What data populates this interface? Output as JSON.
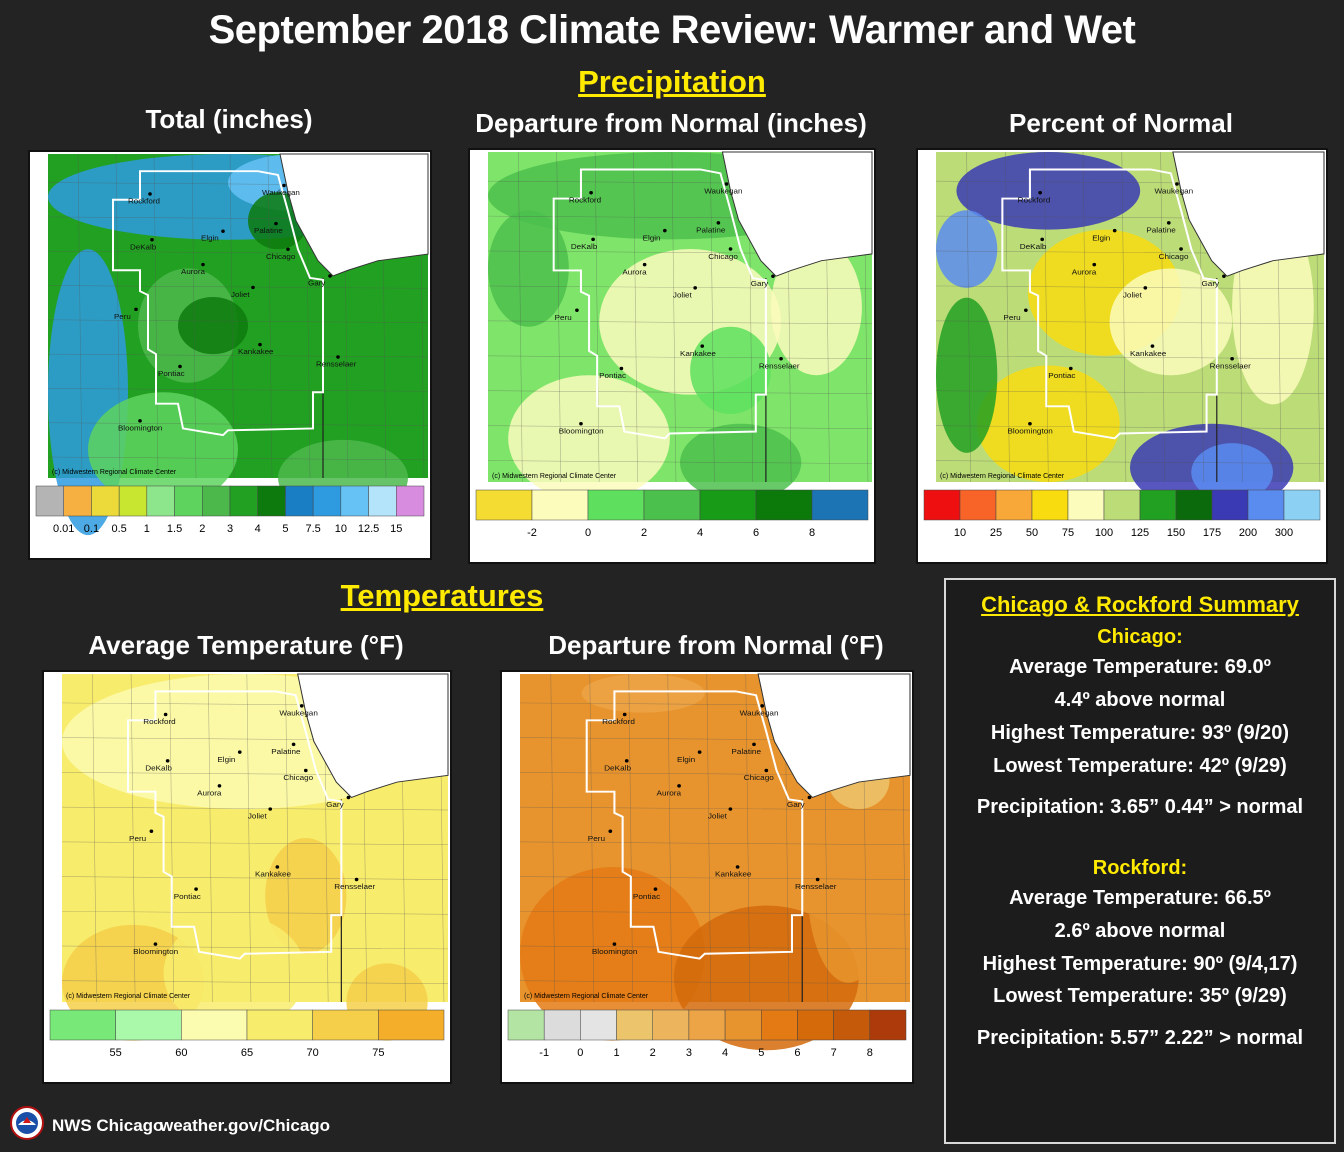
{
  "title": "September 2018 Climate Review: Warmer and Wet",
  "sections": {
    "precip": "Precipitation",
    "temps": "Temperatures"
  },
  "credit": "(c) Midwestern Regional Climate Center",
  "cities": [
    "Waukegan",
    "Rockford",
    "Palatine",
    "Elgin",
    "DeKalb",
    "Chicago",
    "Aurora",
    "Gary",
    "Joliet",
    "Peru",
    "Kankakee",
    "Rensselaer",
    "Pontiac",
    "Bloomington"
  ],
  "maps": {
    "total": {
      "label": "Total (inches)",
      "colors": [
        "#b4b4b4",
        "#f5b041",
        "#ecd93a",
        "#c8e630",
        "#8ee68c",
        "#5ed45e",
        "#4cb84c",
        "#22a022",
        "#0d7a0d",
        "#1a7ec4",
        "#2e9be0",
        "#66c2f4",
        "#b4e4fa",
        "#d88ce0"
      ],
      "ticks": [
        "0.01",
        "0.1",
        "0.5",
        "1",
        "1.5",
        "2",
        "3",
        "4",
        "5",
        "7.5",
        "10",
        "12.5",
        "15"
      ],
      "base": "#22a022"
    },
    "departure": {
      "label": "Departure from Normal (inches)",
      "colors": [
        "#f5dc32",
        "#fcfcbc",
        "#5ee05e",
        "#4cc04c",
        "#189c18",
        "#0b7a0b",
        "#1c74b4"
      ],
      "ticks": [
        "-2",
        "0",
        "2",
        "4",
        "6",
        "8"
      ],
      "base": "#7fe56a"
    },
    "percent": {
      "label": "Percent of Normal",
      "colors": [
        "#ee1010",
        "#f86428",
        "#f8a838",
        "#f8dc10",
        "#fcfcbc",
        "#bcdc78",
        "#22a022",
        "#0b6a0b",
        "#3a3ab4",
        "#5a8cf0",
        "#8cd0f4"
      ],
      "ticks": [
        "10",
        "25",
        "50",
        "75",
        "100",
        "125",
        "150",
        "175",
        "200",
        "300"
      ],
      "base": "#bcdc78"
    },
    "avgtemp": {
      "label": "Average Temperature (°F)",
      "colors": [
        "#78e878",
        "#aaf8aa",
        "#fcfcb0",
        "#f8ec6c",
        "#f5cf4a",
        "#f5ae2a"
      ],
      "ticks": [
        "55",
        "60",
        "65",
        "70",
        "75"
      ],
      "base": "#f8ec6c"
    },
    "tempdep": {
      "label": "Departure from Normal (°F)",
      "colors": [
        "#b4e4a4",
        "#dcdcdc",
        "#e4e4e4",
        "#ecc46c",
        "#ecb45c",
        "#eca446",
        "#e8942e",
        "#e47a14",
        "#d46a0a",
        "#c45a0a",
        "#ad3a0a"
      ],
      "ticks": [
        "-1",
        "0",
        "1",
        "2",
        "3",
        "4",
        "5",
        "6",
        "7",
        "8"
      ],
      "base": "#e8942e"
    }
  },
  "summary": {
    "header": "Chicago & Rockford Summary",
    "chicago": {
      "name": "Chicago:",
      "avg": "Average Temperature:  69.0º",
      "dep": "4.4º above normal",
      "high": "Highest Temperature:  93º (9/20)",
      "low": "Lowest Temperature:  42º (9/29)",
      "precip": "Precipitation:  3.65”  0.44” > normal"
    },
    "rockford": {
      "name": "Rockford:",
      "avg": "Average Temperature:  66.5º",
      "dep": "2.6º above normal",
      "high": "Highest Temperature:  90º (9/4,17)",
      "low": "Lowest Temperature:  35º (9/29)",
      "precip": "Precipitation:  5.57”  2.22” > normal"
    }
  },
  "footer": {
    "office": "NWS Chicago",
    "url": "weather.gov/Chicago"
  }
}
